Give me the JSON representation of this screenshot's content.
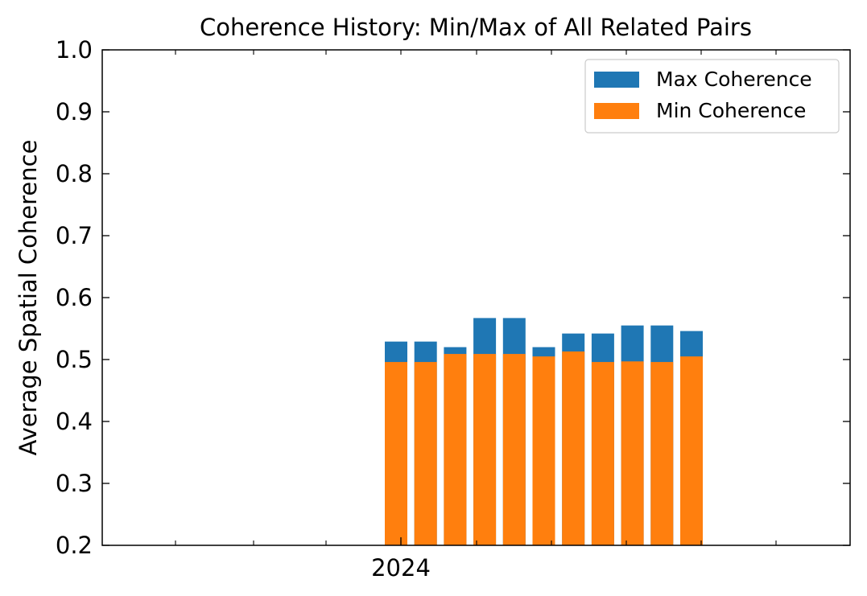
{
  "chart_data": {
    "type": "bar",
    "stacked": "overlay",
    "title": "Coherence History: Min/Max of All Related Pairs",
    "xlabel": "",
    "ylabel": "Average Spatial Coherence",
    "ylim": [
      0.2,
      1.0
    ],
    "yticks": [
      "0.2",
      "0.3",
      "0.4",
      "0.5",
      "0.6",
      "0.7",
      "0.8",
      "0.9",
      "1.0"
    ],
    "xtick_labels": [
      "2024"
    ],
    "grid": false,
    "legend": {
      "position": "top-right"
    },
    "series": [
      {
        "name": "Max Coherence",
        "color": "#1f77b4",
        "values": [
          0.529,
          0.529,
          0.52,
          0.567,
          0.567,
          0.52,
          0.542,
          0.542,
          0.555,
          0.555,
          0.546
        ]
      },
      {
        "name": "Min Coherence",
        "color": "#ff7f0e",
        "values": [
          0.496,
          0.496,
          0.509,
          0.509,
          0.509,
          0.505,
          0.513,
          0.496,
          0.497,
          0.496,
          0.505
        ]
      }
    ]
  }
}
